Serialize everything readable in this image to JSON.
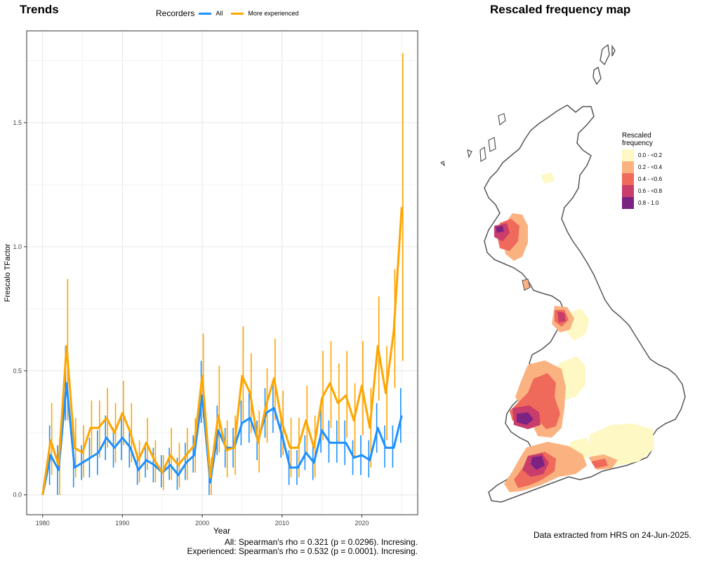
{
  "panels": {
    "trends_title": "Trends",
    "map_title": "Rescaled frequency map"
  },
  "chart_data": {
    "type": "line",
    "title": "Trends",
    "xlabel": "Year",
    "ylabel": "Frescalo TFactor",
    "xlim": [
      1978,
      2027
    ],
    "ylim": [
      -0.08,
      1.87
    ],
    "xticks": [
      1980,
      1990,
      2000,
      2010,
      2020
    ],
    "yticks": [
      0.0,
      0.5,
      1.0,
      1.5
    ],
    "ytick_labels": [
      "0.0",
      "0.5",
      "1.0",
      "1.5"
    ],
    "grid": true,
    "legend": {
      "title": "Recorders",
      "placement": "top",
      "entries": [
        "All",
        "More experienced"
      ]
    },
    "x": [
      1980,
      1981,
      1982,
      1983,
      1984,
      1985,
      1986,
      1987,
      1988,
      1989,
      1990,
      1991,
      1992,
      1993,
      1994,
      1995,
      1996,
      1997,
      1998,
      1999,
      2000,
      2001,
      2002,
      2003,
      2004,
      2005,
      2006,
      2007,
      2008,
      2009,
      2010,
      2011,
      2012,
      2013,
      2014,
      2015,
      2016,
      2017,
      2018,
      2019,
      2020,
      2021,
      2022,
      2023,
      2024,
      2025
    ],
    "series": [
      {
        "name": "All",
        "color": "#1e90ff",
        "values": [
          0.0,
          0.16,
          0.1,
          0.45,
          0.11,
          0.13,
          0.15,
          0.17,
          0.23,
          0.19,
          0.23,
          0.19,
          0.1,
          0.14,
          0.12,
          0.09,
          0.12,
          0.08,
          0.13,
          0.16,
          0.4,
          0.05,
          0.26,
          0.19,
          0.19,
          0.29,
          0.31,
          0.22,
          0.33,
          0.35,
          0.24,
          0.11,
          0.11,
          0.17,
          0.13,
          0.26,
          0.21,
          0.21,
          0.21,
          0.15,
          0.16,
          0.14,
          0.27,
          0.19,
          0.19,
          0.32
        ],
        "lower": [
          0.0,
          0.04,
          0.0,
          0.3,
          0.03,
          0.06,
          0.07,
          0.08,
          0.14,
          0.11,
          0.14,
          0.11,
          0.04,
          0.07,
          0.05,
          0.03,
          0.06,
          0.02,
          0.06,
          0.09,
          0.29,
          0.0,
          0.16,
          0.11,
          0.11,
          0.2,
          0.21,
          0.14,
          0.23,
          0.25,
          0.15,
          0.04,
          0.04,
          0.1,
          0.06,
          0.17,
          0.13,
          0.13,
          0.12,
          0.08,
          0.08,
          0.07,
          0.17,
          0.11,
          0.11,
          0.21
        ],
        "upper": [
          0.0,
          0.28,
          0.2,
          0.6,
          0.2,
          0.2,
          0.23,
          0.26,
          0.32,
          0.27,
          0.32,
          0.27,
          0.17,
          0.21,
          0.19,
          0.16,
          0.19,
          0.15,
          0.21,
          0.24,
          0.54,
          0.11,
          0.36,
          0.27,
          0.27,
          0.38,
          0.41,
          0.3,
          0.43,
          0.45,
          0.33,
          0.18,
          0.18,
          0.24,
          0.2,
          0.35,
          0.3,
          0.3,
          0.3,
          0.22,
          0.24,
          0.22,
          0.37,
          0.28,
          0.28,
          0.43
        ]
      },
      {
        "name": "More experienced",
        "color": "#ffa500",
        "values": [
          0.0,
          0.22,
          0.12,
          0.6,
          0.19,
          0.17,
          0.27,
          0.27,
          0.31,
          0.25,
          0.33,
          0.25,
          0.14,
          0.21,
          0.14,
          0.09,
          0.16,
          0.12,
          0.16,
          0.2,
          0.48,
          0.07,
          0.32,
          0.18,
          0.19,
          0.48,
          0.41,
          0.21,
          0.36,
          0.47,
          0.29,
          0.19,
          0.19,
          0.3,
          0.19,
          0.39,
          0.45,
          0.37,
          0.4,
          0.3,
          0.44,
          0.27,
          0.6,
          0.41,
          0.66,
          1.16
        ],
        "lower": [
          0.0,
          0.08,
          0.0,
          0.3,
          0.07,
          0.07,
          0.15,
          0.15,
          0.19,
          0.13,
          0.2,
          0.13,
          0.05,
          0.1,
          0.05,
          0.02,
          0.06,
          0.03,
          0.06,
          0.09,
          0.31,
          0.0,
          0.17,
          0.07,
          0.08,
          0.3,
          0.25,
          0.09,
          0.21,
          0.3,
          0.16,
          0.07,
          0.07,
          0.16,
          0.07,
          0.22,
          0.27,
          0.21,
          0.23,
          0.15,
          0.24,
          0.11,
          0.38,
          0.22,
          0.43,
          0.54
        ],
        "upper": [
          0.0,
          0.37,
          0.23,
          0.87,
          0.31,
          0.28,
          0.38,
          0.38,
          0.43,
          0.37,
          0.46,
          0.37,
          0.22,
          0.31,
          0.22,
          0.16,
          0.27,
          0.21,
          0.27,
          0.31,
          0.65,
          0.15,
          0.52,
          0.3,
          0.32,
          0.68,
          0.57,
          0.34,
          0.51,
          0.63,
          0.42,
          0.31,
          0.31,
          0.44,
          0.32,
          0.58,
          0.62,
          0.53,
          0.58,
          0.45,
          0.62,
          0.43,
          0.8,
          0.6,
          0.91,
          1.78
        ]
      }
    ]
  },
  "stats": {
    "line1": "All: Spearman's rho = 0.321 (p = 0.0296). Incresing.",
    "line2": "Experienced: Spearman's rho = 0.532 (p = 0.0001). Incresing."
  },
  "map": {
    "legend_title_1": "Rescaled",
    "legend_title_2": "frequency",
    "classes": [
      {
        "label": "0.0 - <0.2",
        "color": "#fdf8c4"
      },
      {
        "label": "0.2 - <0.4",
        "color": "#fbb281"
      },
      {
        "label": "0.4 - <0.6",
        "color": "#f06a5b"
      },
      {
        "label": "0.6 - <0.8",
        "color": "#c83d6b"
      },
      {
        "label": "0.8 - 1.0",
        "color": "#7b2383"
      }
    ],
    "note": "Data extracted from HRS on 24-Jun-2025."
  }
}
